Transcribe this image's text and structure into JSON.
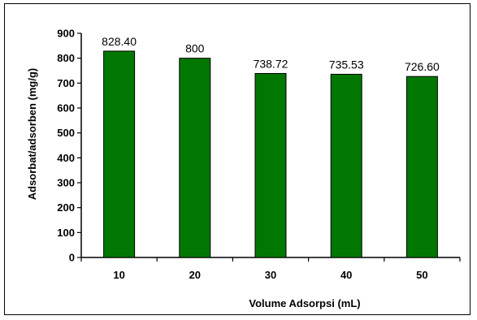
{
  "chart_data": {
    "type": "bar",
    "title": "",
    "xlabel": "Volume Adsorpsi (mL)",
    "ylabel": "Adsorbat/adsorben (mg/g)",
    "categories": [
      "10",
      "20",
      "30",
      "40",
      "50"
    ],
    "values": [
      828.4,
      800,
      738.72,
      735.53,
      726.6
    ],
    "data_labels": [
      "828.40",
      "800",
      "738.72",
      "735.53",
      "726.60"
    ],
    "yticks": [
      "0",
      "100",
      "200",
      "300",
      "400",
      "500",
      "600",
      "700",
      "800",
      "900"
    ],
    "ylim": [
      0,
      900
    ],
    "bar_color": "#007700",
    "grid": false,
    "legend": "none"
  }
}
